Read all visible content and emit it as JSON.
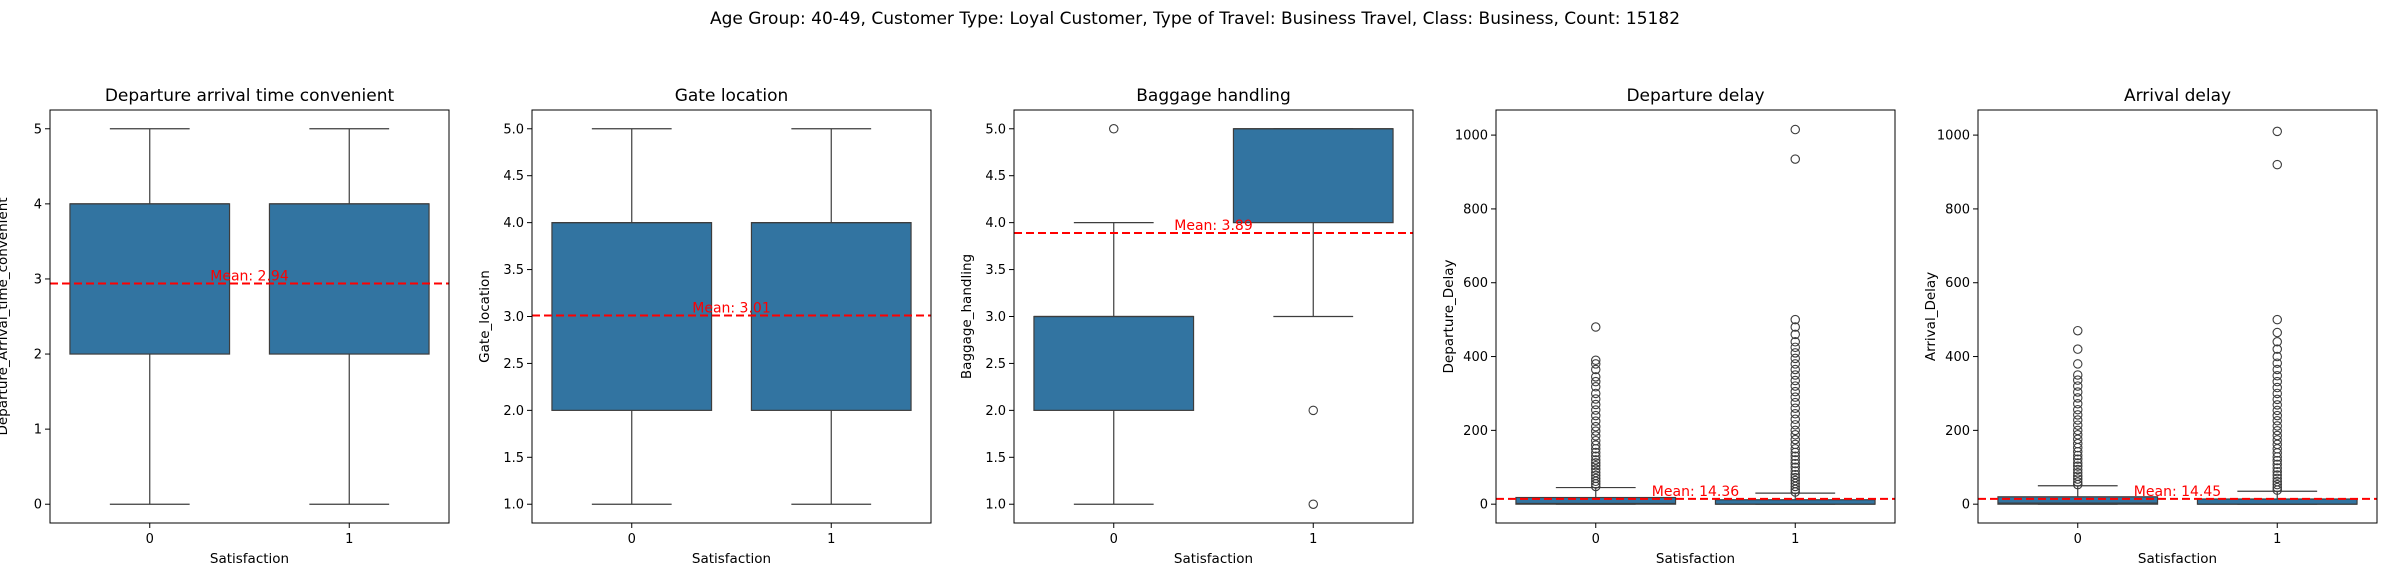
{
  "figure": {
    "suptitle": "Age Group: 40-49, Customer Type: Loyal Customer, Type of Travel: Business Travel, Class: Business, Count: 15182"
  },
  "colors": {
    "box": "#3274a1",
    "mean_line": "#ff0000",
    "line": "#3d3d3d"
  },
  "chart_data": [
    {
      "type": "box",
      "title": "Departure arrival time convenient",
      "xlabel": "Satisfaction",
      "ylabel": "Departure_Arrival_time_convenient",
      "categories": [
        "0",
        "1"
      ],
      "ylim": [
        -0.25,
        5.25
      ],
      "yticks": [
        0,
        1,
        2,
        3,
        4,
        5
      ],
      "ytick_labels": [
        "0",
        "1",
        "2",
        "3",
        "4",
        "5"
      ],
      "boxes": [
        {
          "q1": 2,
          "median": 4,
          "q3": 4,
          "whislo": 0,
          "whishi": 5,
          "fliers": []
        },
        {
          "q1": 2,
          "median": 4,
          "q3": 4,
          "whislo": 0,
          "whishi": 5,
          "fliers": []
        }
      ],
      "mean": 2.94,
      "mean_label": "Mean: 2.94"
    },
    {
      "type": "box",
      "title": "Gate location",
      "xlabel": "Satisfaction",
      "ylabel": "Gate_location",
      "categories": [
        "0",
        "1"
      ],
      "ylim": [
        0.8,
        5.2
      ],
      "yticks": [
        1,
        1.5,
        2,
        2.5,
        3,
        3.5,
        4,
        4.5,
        5
      ],
      "ytick_labels": [
        "1.0",
        "1.5",
        "2.0",
        "2.5",
        "3.0",
        "3.5",
        "4.0",
        "4.5",
        "5.0"
      ],
      "boxes": [
        {
          "q1": 2,
          "median": 4,
          "q3": 4,
          "whislo": 1,
          "whishi": 5,
          "fliers": []
        },
        {
          "q1": 2,
          "median": 4,
          "q3": 4,
          "whislo": 1,
          "whishi": 5,
          "fliers": []
        }
      ],
      "mean": 3.01,
      "mean_label": "Mean: 3.01"
    },
    {
      "type": "box",
      "title": "Baggage handling",
      "xlabel": "Satisfaction",
      "ylabel": "Baggage_handling",
      "categories": [
        "0",
        "1"
      ],
      "ylim": [
        0.8,
        5.2
      ],
      "yticks": [
        1,
        1.5,
        2,
        2.5,
        3,
        3.5,
        4,
        4.5,
        5
      ],
      "ytick_labels": [
        "1.0",
        "1.5",
        "2.0",
        "2.5",
        "3.0",
        "3.5",
        "4.0",
        "4.5",
        "5.0"
      ],
      "boxes": [
        {
          "q1": 2,
          "median": 3,
          "q3": 3,
          "whislo": 1,
          "whishi": 4,
          "fliers": [
            5
          ]
        },
        {
          "q1": 4,
          "median": 5,
          "q3": 5,
          "whislo": 3,
          "whishi": 5,
          "fliers": [
            2,
            1
          ]
        }
      ],
      "mean": 3.89,
      "mean_label": "Mean: 3.89"
    },
    {
      "type": "box",
      "title": "Departure delay",
      "xlabel": "Satisfaction",
      "ylabel": "Departure_Delay",
      "categories": [
        "0",
        "1"
      ],
      "ylim": [
        -51,
        1068
      ],
      "yticks": [
        0,
        200,
        400,
        600,
        800,
        1000
      ],
      "ytick_labels": [
        "0",
        "200",
        "400",
        "600",
        "800",
        "1000"
      ],
      "boxes": [
        {
          "q1": 0,
          "median": 2,
          "q3": 18,
          "whislo": 0,
          "whishi": 45,
          "fliers": [
            48,
            55,
            62,
            70,
            78,
            86,
            95,
            104,
            112,
            120,
            130,
            140,
            150,
            160,
            172,
            185,
            198,
            210,
            225,
            240,
            255,
            270,
            285,
            300,
            318,
            332,
            345,
            365,
            380,
            390,
            480
          ]
        },
        {
          "q1": 0,
          "median": 0,
          "q3": 12,
          "whislo": 0,
          "whishi": 30,
          "fliers": [
            33,
            40,
            48,
            56,
            64,
            72,
            80,
            90,
            100,
            110,
            120,
            130,
            140,
            150,
            162,
            175,
            188,
            200,
            215,
            230,
            245,
            260,
            275,
            290,
            305,
            320,
            335,
            350,
            365,
            380,
            395,
            410,
            425,
            440,
            460,
            480,
            500,
            935,
            1015
          ]
        }
      ],
      "mean": 14.36,
      "mean_label": "Mean: 14.36"
    },
    {
      "type": "box",
      "title": "Arrival delay",
      "xlabel": "Satisfaction",
      "ylabel": "Arrival_Delay",
      "categories": [
        "0",
        "1"
      ],
      "ylim": [
        -51,
        1068
      ],
      "yticks": [
        0,
        200,
        400,
        600,
        800,
        1000
      ],
      "ytick_labels": [
        "0",
        "200",
        "400",
        "600",
        "800",
        "1000"
      ],
      "boxes": [
        {
          "q1": 0,
          "median": 3,
          "q3": 20,
          "whislo": 0,
          "whishi": 50,
          "fliers": [
            53,
            60,
            68,
            76,
            85,
            94,
            103,
            112,
            122,
            132,
            142,
            153,
            164,
            176,
            188,
            200,
            214,
            228,
            242,
            256,
            272,
            288,
            304,
            320,
            336,
            350,
            380,
            420,
            470
          ]
        },
        {
          "q1": 0,
          "median": 0,
          "q3": 14,
          "whislo": 0,
          "whishi": 35,
          "fliers": [
            38,
            45,
            53,
            61,
            70,
            79,
            88,
            98,
            108,
            118,
            128,
            139,
            150,
            162,
            174,
            186,
            199,
            212,
            226,
            240,
            254,
            269,
            284,
            300,
            316,
            332,
            348,
            365,
            382,
            400,
            420,
            440,
            465,
            500,
            920,
            1010
          ]
        }
      ],
      "mean": 14.45,
      "mean_label": "Mean: 14.45"
    }
  ]
}
